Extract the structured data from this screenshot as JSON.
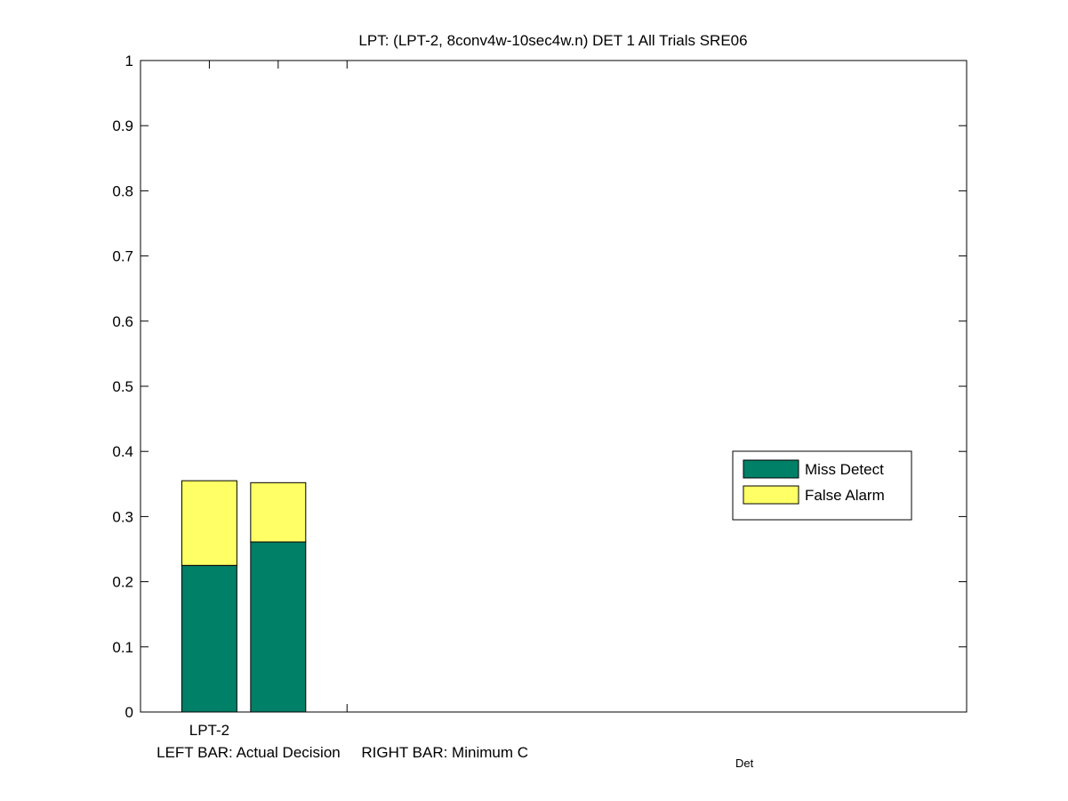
{
  "chart_data": {
    "type": "stacked_bar",
    "title": "LPT: (LPT-2, 8conv4w-10sec4w.n) DET 1 All Trials SRE06",
    "xlabel": "LEFT BAR: Actual Decision     RIGHT BAR: Minimum C",
    "xlabel_subscript": "Det",
    "x": [
      1,
      2
    ],
    "xlim": [
      0,
      12
    ],
    "xticks": [
      1,
      2,
      3
    ],
    "xtick_labels": [
      "LPT-2",
      null,
      null
    ],
    "series": [
      {
        "name": "Miss Detect",
        "color": "#008066",
        "values": [
          0.225,
          0.261
        ]
      },
      {
        "name": "False Alarm",
        "color": "#ffff66",
        "values": [
          0.13,
          0.091
        ]
      }
    ],
    "ylim": [
      0,
      1
    ],
    "yticks": [
      0,
      0.1,
      0.2,
      0.3,
      0.4,
      0.5,
      0.6,
      0.7,
      0.8,
      0.9,
      1
    ],
    "legend": "east"
  }
}
